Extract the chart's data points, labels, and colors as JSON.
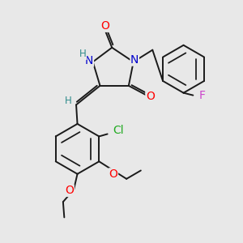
{
  "background_color": "#e8e8e8",
  "bond_color": "#1a1a1a",
  "bond_width": 1.4,
  "atom_colors": {
    "O": "#ff0000",
    "N": "#0000cc",
    "H_label": "#2e8b8b",
    "Cl": "#22aa22",
    "F": "#cc44cc"
  },
  "font_size_atoms": 10,
  "font_size_H": 8.5
}
